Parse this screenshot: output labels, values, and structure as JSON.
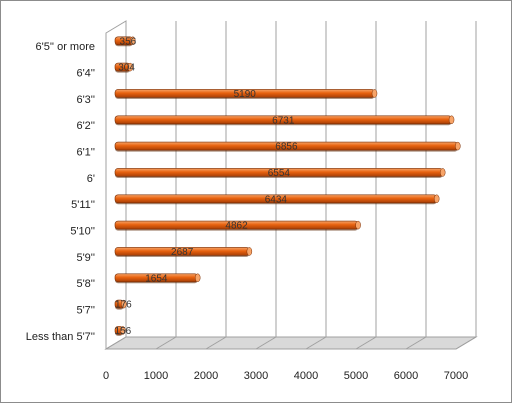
{
  "chart_data": {
    "type": "bar",
    "orientation": "horizontal",
    "style": "3d-cylinder",
    "categories": [
      "Less than 5'7''",
      "5'7''",
      "5'8''",
      "5'9''",
      "5'10''",
      "5'11''",
      "6'",
      "6'1''",
      "6'2''",
      "6'3''",
      "6'4''",
      "6'5'' or more"
    ],
    "values": [
      156,
      176,
      1654,
      2687,
      4862,
      6434,
      6554,
      6856,
      6731,
      5190,
      304,
      356
    ],
    "data_labels": [
      "156",
      "176",
      "1654",
      "2687",
      "4862",
      "6434",
      "6554",
      "6856",
      "6731",
      "5190",
      "304",
      "356"
    ],
    "x_ticks": [
      "0",
      "1000",
      "2000",
      "3000",
      "4000",
      "5000",
      "6000",
      "7000"
    ],
    "xlim": [
      0,
      7000
    ],
    "title": "",
    "xlabel": "",
    "ylabel": "",
    "grid": true,
    "legend": "none",
    "colors": {
      "bar_main": "#e8620f",
      "bar_dark": "#a83f06",
      "bar_light": "#f7a468",
      "grid": "#a0a0a0",
      "floor": "#d9d9d9"
    }
  }
}
